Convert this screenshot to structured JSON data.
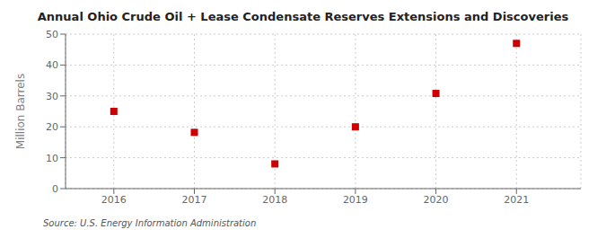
{
  "chart_data": {
    "type": "scatter",
    "title": "Annual Ohio Crude Oil + Lease Condensate Reserves Extensions and Discoveries",
    "ylabel": "Million Barrels",
    "x": [
      2016,
      2017,
      2018,
      2019,
      2020,
      2021
    ],
    "values": [
      25.0,
      18.2,
      8.0,
      20.0,
      30.8,
      47.0
    ],
    "color": "#cc0000",
    "marker": "square",
    "xlim": [
      2015.4,
      2021.8
    ],
    "xticks": [
      2016,
      2017,
      2018,
      2019,
      2020,
      2021
    ],
    "ylim": [
      0,
      50
    ],
    "yticks": [
      0,
      10,
      20,
      30,
      40,
      50
    ],
    "grid": true,
    "annotation": "Source: U.S. Energy Information Administration"
  }
}
